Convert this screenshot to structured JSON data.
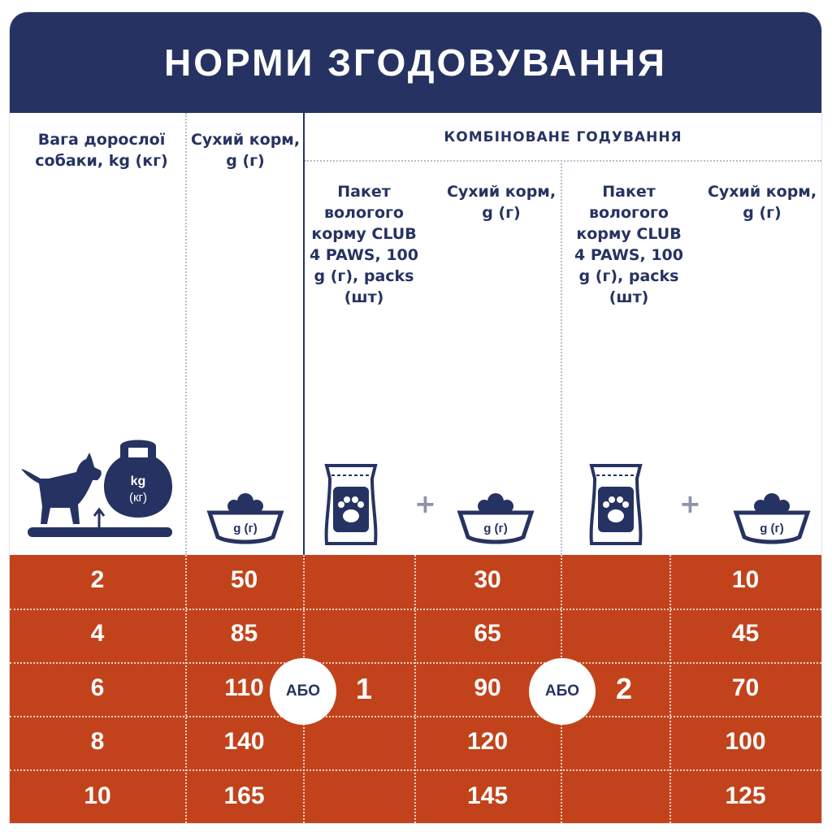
{
  "title": "НОРМИ ЗГОДОВУВАННЯ",
  "columns": {
    "weight": "Вага дорослої собаки, kg (кг)",
    "dry": "Сухий корм, g (г)",
    "combined": "КОМБІНОВАНЕ ГОДУВАННЯ",
    "pack1": "Пакет вологого корму CLUB 4 PAWS, 100 g (г), packs (шт)",
    "dry1": "Сухий корм, g (г)",
    "pack2": "Пакет вологого корму CLUB 4 PAWS, 100 g (г), packs (шт)",
    "dry2": "Сухий корм, g (г)"
  },
  "icons": {
    "dog": "dog-icon",
    "kettlebell": "kettlebell-icon",
    "kettlebell_label1": "kg",
    "kettlebell_label2": "(кг)",
    "bowl_label": "g (г)",
    "pouch": "pouch-icon",
    "plus": "+"
  },
  "or_label": "АБО",
  "packs": [
    "1",
    "2"
  ],
  "rows": [
    {
      "weight": "2",
      "dry": "50",
      "dry1": "30",
      "dry2": "10"
    },
    {
      "weight": "4",
      "dry": "85",
      "dry1": "65",
      "dry2": "45"
    },
    {
      "weight": "6",
      "dry": "110",
      "dry1": "90",
      "dry2": "70"
    },
    {
      "weight": "8",
      "dry": "140",
      "dry1": "120",
      "dry2": "100"
    },
    {
      "weight": "10",
      "dry": "165",
      "dry1": "145",
      "dry2": "125"
    }
  ],
  "colors": {
    "navy": "#263362",
    "orange": "#c2431b",
    "white": "#ffffff"
  }
}
